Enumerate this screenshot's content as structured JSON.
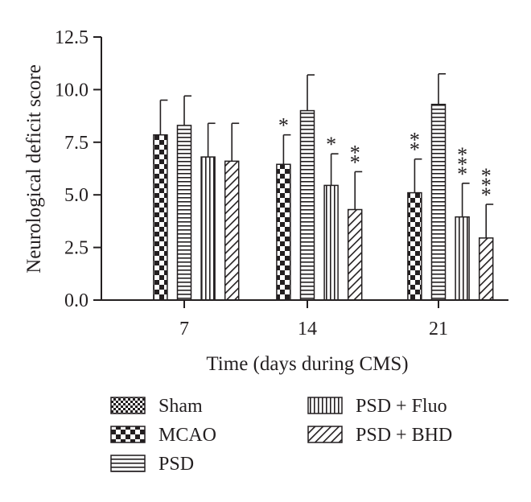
{
  "chart_data": {
    "type": "bar",
    "xlabel": "Time (days during CMS)",
    "ylabel": "Neurological deficit score",
    "ylim": [
      0,
      12.5
    ],
    "yticks": [
      "0.0",
      "2.5",
      "5.0",
      "7.5",
      "10.0",
      "12.5"
    ],
    "categories": [
      "7",
      "14",
      "21"
    ],
    "grid": false,
    "legend_position": "bottom",
    "series": [
      {
        "name": "Sham",
        "pattern": "fine-check",
        "values": [
          0,
          0,
          0
        ],
        "errors": [
          0,
          0,
          0
        ],
        "significance": [
          "",
          "",
          ""
        ]
      },
      {
        "name": "MCAO",
        "pattern": "coarse-check",
        "values": [
          7.85,
          6.45,
          5.1
        ],
        "errors": [
          1.65,
          1.4,
          1.6
        ],
        "significance": [
          "",
          "*",
          "**"
        ]
      },
      {
        "name": "PSD",
        "pattern": "horizontal-lines",
        "values": [
          8.3,
          9.0,
          9.3
        ],
        "errors": [
          1.4,
          1.7,
          1.45
        ],
        "significance": [
          "",
          "",
          ""
        ]
      },
      {
        "name": "PSD + Fluo",
        "pattern": "vertical-lines",
        "values": [
          6.8,
          5.45,
          3.95
        ],
        "errors": [
          1.6,
          1.5,
          1.6
        ],
        "significance": [
          "",
          "*",
          "***"
        ]
      },
      {
        "name": "PSD + BHD",
        "pattern": "diagonal-lines",
        "values": [
          6.6,
          4.3,
          2.95
        ],
        "errors": [
          1.8,
          1.8,
          1.6
        ],
        "significance": [
          "",
          "**",
          "***"
        ]
      }
    ]
  }
}
